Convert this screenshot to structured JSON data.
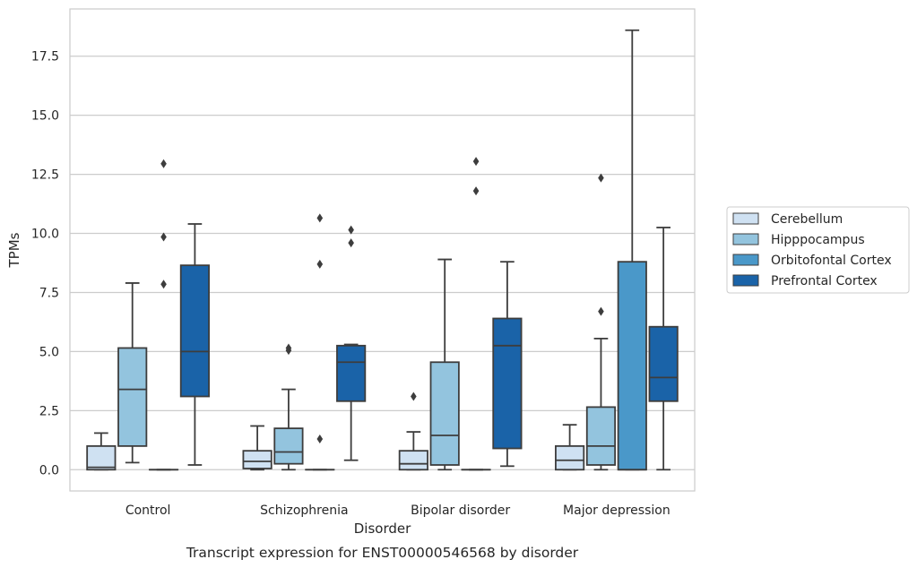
{
  "caption": "Transcript expression for ENST00000546568 by disorder",
  "chart_data": {
    "type": "box",
    "xlabel": "Disorder",
    "ylabel": "TPMs",
    "ylim": [
      -0.9,
      19.5
    ],
    "yticks": [
      0.0,
      2.5,
      5.0,
      7.5,
      10.0,
      12.5,
      15.0,
      17.5
    ],
    "ytick_labels": [
      "0.0",
      "2.5",
      "5.0",
      "7.5",
      "10.0",
      "12.5",
      "15.0",
      "17.5"
    ],
    "grid": "horizontal",
    "legend_position": "right-outside",
    "categories": [
      "Control",
      "Schizophrenia",
      "Bipolar disorder",
      "Major depression"
    ],
    "series": [
      {
        "name": "Cerebellum",
        "color": "#cfe1f2",
        "boxes": [
          {
            "whislo": 0.0,
            "q1": 0.0,
            "med": 0.1,
            "q3": 1.0,
            "whishi": 1.55,
            "fliers": []
          },
          {
            "whislo": 0.0,
            "q1": 0.05,
            "med": 0.35,
            "q3": 0.8,
            "whishi": 1.85,
            "fliers": []
          },
          {
            "whislo": 0.0,
            "q1": 0.0,
            "med": 0.25,
            "q3": 0.8,
            "whishi": 1.6,
            "fliers": [
              3.1
            ]
          },
          {
            "whislo": 0.0,
            "q1": 0.0,
            "med": 0.4,
            "q3": 1.0,
            "whishi": 1.9,
            "fliers": []
          }
        ]
      },
      {
        "name": "Hipppocampus",
        "color": "#93c4de",
        "boxes": [
          {
            "whislo": 0.3,
            "q1": 1.0,
            "med": 3.4,
            "q3": 5.15,
            "whishi": 7.9,
            "fliers": []
          },
          {
            "whislo": 0.0,
            "q1": 0.25,
            "med": 0.75,
            "q3": 1.75,
            "whishi": 3.4,
            "fliers": [
              5.05,
              5.15
            ]
          },
          {
            "whislo": 0.0,
            "q1": 0.2,
            "med": 1.45,
            "q3": 4.55,
            "whishi": 8.9,
            "fliers": []
          },
          {
            "whislo": 0.0,
            "q1": 0.2,
            "med": 1.0,
            "q3": 2.65,
            "whishi": 5.55,
            "fliers": [
              6.7,
              12.35
            ]
          }
        ]
      },
      {
        "name": "Orbitofontal Cortex",
        "color": "#4a98c9",
        "boxes": [
          {
            "whislo": 0.0,
            "q1": 0.0,
            "med": 0.0,
            "q3": 0.0,
            "whishi": 0.0,
            "fliers": [
              7.85,
              9.85,
              12.95
            ]
          },
          {
            "whislo": 0.0,
            "q1": 0.0,
            "med": 0.0,
            "q3": 0.0,
            "whishi": 0.0,
            "fliers": [
              1.3,
              8.7,
              10.65
            ]
          },
          {
            "whislo": 0.0,
            "q1": 0.0,
            "med": 0.0,
            "q3": 0.0,
            "whishi": 0.0,
            "fliers": [
              11.8,
              13.05
            ]
          },
          {
            "whislo": 0.0,
            "q1": 0.0,
            "med": 0.0,
            "q3": 8.8,
            "whishi": 18.6,
            "fliers": []
          }
        ]
      },
      {
        "name": "Prefrontal Cortex",
        "color": "#1a63a8",
        "boxes": [
          {
            "whislo": 0.2,
            "q1": 3.1,
            "med": 5.0,
            "q3": 8.65,
            "whishi": 10.4,
            "fliers": []
          },
          {
            "whislo": 0.4,
            "q1": 2.9,
            "med": 4.55,
            "q3": 5.25,
            "whishi": 5.3,
            "fliers": [
              9.6,
              10.15
            ]
          },
          {
            "whislo": 0.15,
            "q1": 0.9,
            "med": 5.25,
            "q3": 6.4,
            "whishi": 8.8,
            "fliers": []
          },
          {
            "whislo": 0.0,
            "q1": 2.9,
            "med": 3.9,
            "q3": 6.05,
            "whishi": 10.25,
            "fliers": []
          }
        ]
      }
    ]
  }
}
